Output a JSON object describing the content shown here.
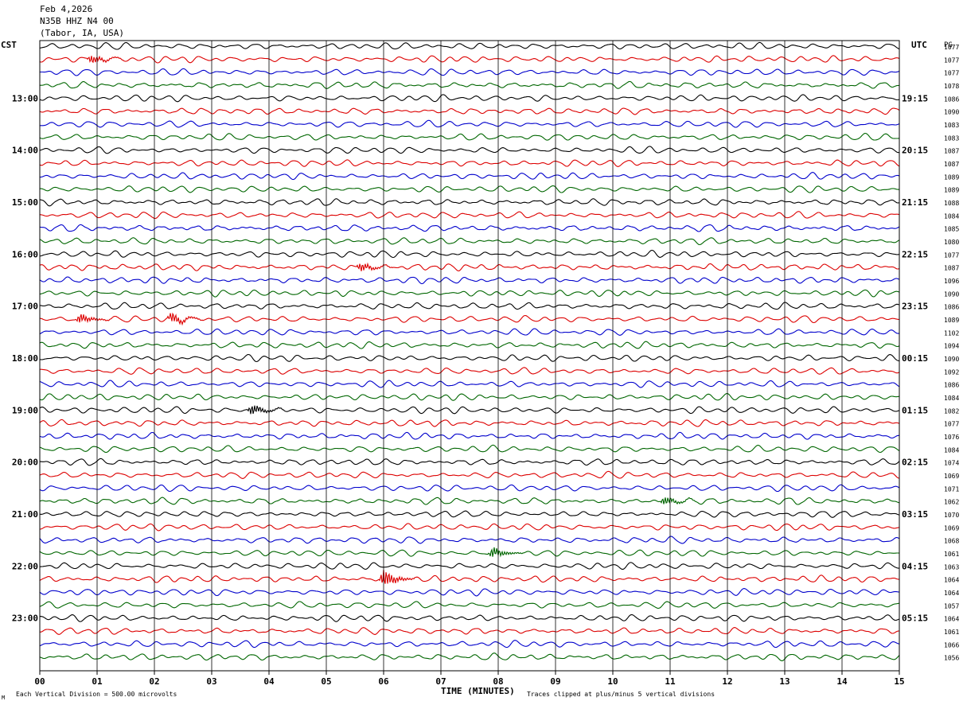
{
  "header": {
    "date": "Feb 4,2026",
    "station": "N35B HHZ N4 00",
    "location": "(Tabor, IA, USA)"
  },
  "labels": {
    "left_timezone": "CST",
    "right_timezone": "UTC",
    "scale_column": "PG"
  },
  "footer": {
    "vertical_division": "Each Vertical Division =  500.00 microvolts",
    "x_axis_title": "TIME (MINUTES)",
    "clip_note": "Traces clipped at plus/minus 5 vertical divisions",
    "corner_mark": "M"
  },
  "colors": {
    "trace_cycle": [
      "#000000",
      "#dd0000",
      "#0000cc",
      "#006600"
    ],
    "grid": "#000000",
    "background": "#ffffff"
  },
  "chart_data": {
    "type": "line",
    "title": "",
    "xlabel": "TIME (MINUTES)",
    "ylabel": "",
    "xlim": [
      0,
      15
    ],
    "x_ticks": [
      "00",
      "01",
      "02",
      "03",
      "04",
      "05",
      "06",
      "07",
      "08",
      "09",
      "10",
      "11",
      "12",
      "13",
      "14",
      "15"
    ],
    "grid": true,
    "rows_per_hour": 4,
    "row_count": 48,
    "left_hour_labels": [
      "13:00",
      "14:00",
      "15:00",
      "16:00",
      "17:00",
      "18:00",
      "19:00",
      "20:00",
      "21:00",
      "22:00",
      "23:00"
    ],
    "right_hour_labels": [
      "19:15",
      "20:15",
      "21:15",
      "22:15",
      "23:15",
      "00:15",
      "01:15",
      "02:15",
      "03:15",
      "04:15",
      "05:15"
    ],
    "hour_label_start_row": 4,
    "row_scale_values": [
      1077,
      1077,
      1077,
      1078,
      1086,
      1090,
      1083,
      1083,
      1087,
      1087,
      1089,
      1089,
      1088,
      1084,
      1085,
      1080,
      1077,
      1087,
      1096,
      1090,
      1086,
      1089,
      1102,
      1094,
      1090,
      1092,
      1086,
      1084,
      1082,
      1077,
      1076,
      1084,
      1074,
      1069,
      1071,
      1062,
      1070,
      1069,
      1068,
      1061,
      1063,
      1064,
      1064,
      1057,
      1064,
      1061,
      1066,
      1056
    ],
    "events": [
      {
        "row": 1,
        "minute": 0.9,
        "amplitude": 1.4
      },
      {
        "row": 17,
        "minute": 5.6,
        "amplitude": 1.5
      },
      {
        "row": 21,
        "minute": 0.7,
        "amplitude": 1.6
      },
      {
        "row": 21,
        "minute": 2.3,
        "amplitude": 1.8
      },
      {
        "row": 28,
        "minute": 3.7,
        "amplitude": 1.8
      },
      {
        "row": 35,
        "minute": 10.9,
        "amplitude": 1.4
      },
      {
        "row": 39,
        "minute": 7.9,
        "amplitude": 1.8
      },
      {
        "row": 41,
        "minute": 6.0,
        "amplitude": 3.0
      }
    ]
  }
}
